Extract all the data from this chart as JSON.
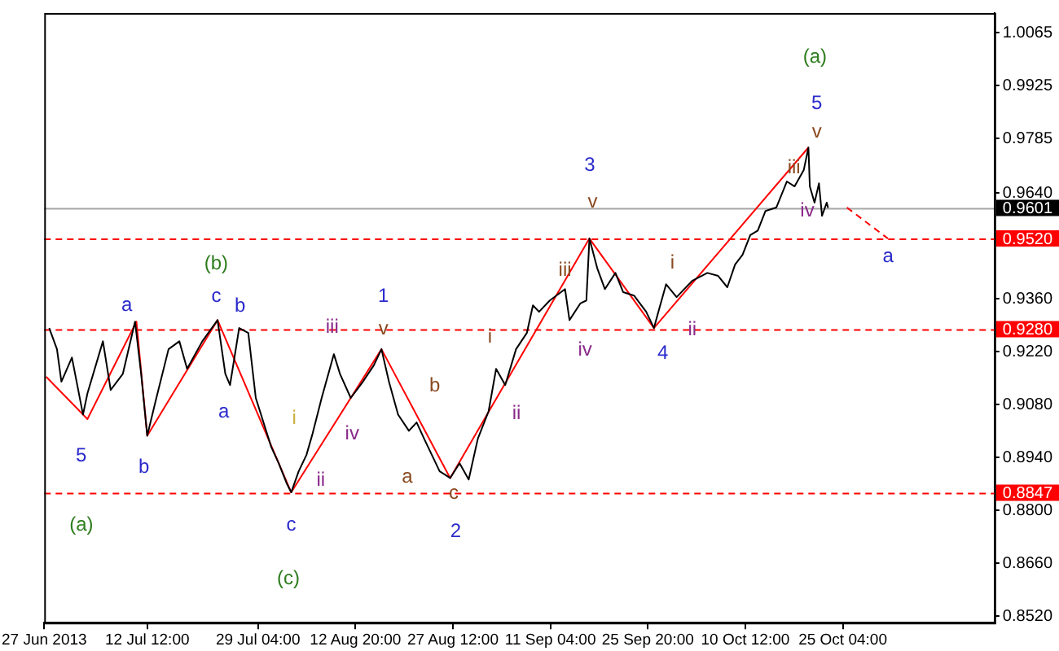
{
  "chart_data": {
    "type": "line",
    "marker": "none",
    "legend": false,
    "grid": false,
    "xlim": [
      "2013-06-27T00:00",
      "2013-11-17T00:00"
    ],
    "xticks": [
      {
        "value": "2013-06-27T00:00",
        "label": "27 Jun 2013"
      },
      {
        "value": "2013-07-12T12:00",
        "label": "12 Jul 12:00"
      },
      {
        "value": "2013-07-29T04:00",
        "label": "29 Jul 04:00"
      },
      {
        "value": "2013-08-12T20:00",
        "label": "12 Aug 20:00"
      },
      {
        "value": "2013-08-27T12:00",
        "label": "27 Aug 12:00"
      },
      {
        "value": "2013-09-11T04:00",
        "label": "11 Sep 04:00"
      },
      {
        "value": "2013-09-25T20:00",
        "label": "25 Sep 20:00"
      },
      {
        "value": "2013-10-10T12:00",
        "label": "10 Oct 12:00"
      },
      {
        "value": "2013-10-25T04:00",
        "label": "25 Oct 04:00"
      }
    ],
    "ylim": [
      0.8503,
      1.0117
    ],
    "yticks": [
      {
        "value": 1.0065,
        "label": "1.0065"
      },
      {
        "value": 0.9925,
        "label": "0.9925"
      },
      {
        "value": 0.9785,
        "label": "0.9785"
      },
      {
        "value": 0.964,
        "label": "0.9640"
      },
      {
        "value": 0.936,
        "label": "0.9360"
      },
      {
        "value": 0.922,
        "label": "0.9220"
      },
      {
        "value": 0.908,
        "label": "0.9080"
      },
      {
        "value": 0.894,
        "label": "0.8940"
      },
      {
        "value": 0.88,
        "label": "0.8800"
      },
      {
        "value": 0.866,
        "label": "0.8660"
      },
      {
        "value": 0.852,
        "label": "0.8520"
      }
    ],
    "series": [
      {
        "color": "#000000",
        "x": [
          "2013-06-27T18:00",
          "2013-06-28T22:00",
          "2013-06-29T14:00",
          "2013-07-01T04:00",
          "2013-07-02T20:00",
          "2013-07-03T12:00",
          "2013-07-05T20:00",
          "2013-07-07T00:00",
          "2013-07-08T20:00",
          "2013-07-10T16:00",
          "2013-07-11T14:00",
          "2013-07-12T12:00",
          "2013-07-13T21:00",
          "2013-07-15T17:00",
          "2013-07-17T08:00",
          "2013-07-18T12:00",
          "2013-07-20T19:00",
          "2013-07-23T02:00",
          "2013-07-24T06:00",
          "2013-07-24T23:00",
          "2013-07-26T08:00",
          "2013-07-27T17:00",
          "2013-07-28T20:00",
          "2013-07-30T00:00",
          "2013-07-31T04:00",
          "2013-08-01T07:00",
          "2013-08-02T11:00",
          "2013-08-03T04:00",
          "2013-08-04T07:00",
          "2013-08-05T11:00",
          "2013-08-06T09:00",
          "2013-08-07T18:00",
          "2013-08-09T14:00",
          "2013-08-10T12:00",
          "2013-08-12T03:00",
          "2013-08-13T23:00",
          "2013-08-15T14:00",
          "2013-08-16T18:00",
          "2013-08-17T21:00",
          "2013-08-19T06:00",
          "2013-08-20T21:00",
          "2013-08-22T01:00",
          "2013-08-23T04:00",
          "2013-08-24T08:00",
          "2013-08-25T12:00",
          "2013-08-27T02:00",
          "2013-08-28T12:00",
          "2013-08-29T21:00",
          "2013-08-31T06:00",
          "2013-09-01T21:00",
          "2013-09-03T00:00",
          "2013-09-04T09:00",
          "2013-09-06T00:00",
          "2013-09-07T15:00",
          "2013-09-08T13:00",
          "2013-09-09T11:00",
          "2013-09-11T02:00",
          "2013-09-13T09:00",
          "2013-09-14T01:00",
          "2013-09-15T16:00",
          "2013-09-16T14:00",
          "2013-09-17T01:00",
          "2013-09-18T05:00",
          "2013-09-19T09:00",
          "2013-09-20T23:00",
          "2013-09-22T03:00",
          "2013-09-23T18:00",
          "2013-09-25T14:00",
          "2013-09-26T18:00",
          "2013-09-27T10:00",
          "2013-09-28T14:00",
          "2013-09-30T04:00",
          "2013-10-02T12:00",
          "2013-10-04T19:00",
          "2013-10-06T10:00",
          "2013-10-07T19:00",
          "2013-10-08T23:00",
          "2013-10-10T02:00",
          "2013-10-11T06:00",
          "2013-10-12T09:00",
          "2013-10-13T13:00",
          "2013-10-15T04:00",
          "2013-10-16T18:00",
          "2013-10-17T22:00",
          "2013-10-19T07:00",
          "2013-10-20T00:00",
          "2013-10-20T05:00",
          "2013-10-20T22:00",
          "2013-10-21T14:00",
          "2013-10-22T01:00",
          "2013-10-22T18:00",
          "2013-10-22T23:00"
        ],
        "values": [
          0.9283,
          0.9227,
          0.9141,
          0.9205,
          0.9054,
          0.911,
          0.9248,
          0.9119,
          0.9162,
          0.93,
          0.9162,
          0.8998,
          0.9098,
          0.9227,
          0.9248,
          0.9175,
          0.9248,
          0.9304,
          0.9162,
          0.9132,
          0.9283,
          0.927,
          0.9098,
          0.9033,
          0.8968,
          0.8925,
          0.8873,
          0.8848,
          0.8904,
          0.8947,
          0.9003,
          0.9098,
          0.9214,
          0.9162,
          0.9098,
          0.9141,
          0.9184,
          0.9227,
          0.9141,
          0.9054,
          0.9011,
          0.9033,
          0.899,
          0.8947,
          0.8904,
          0.8886,
          0.8925,
          0.8882,
          0.899,
          0.9063,
          0.9175,
          0.9132,
          0.9227,
          0.927,
          0.9343,
          0.9326,
          0.9356,
          0.9386,
          0.9304,
          0.9348,
          0.9356,
          0.952,
          0.9442,
          0.9386,
          0.9429,
          0.9378,
          0.9369,
          0.9326,
          0.9283,
          0.9326,
          0.9399,
          0.9365,
          0.9408,
          0.9429,
          0.9421,
          0.9391,
          0.9451,
          0.9477,
          0.9529,
          0.9541,
          0.9593,
          0.9602,
          0.9671,
          0.9658,
          0.9701,
          0.9761,
          0.9658,
          0.9615,
          0.9666,
          0.958,
          0.9615,
          0.9601
        ]
      },
      {
        "color": "#ff0000",
        "x": [
          "2013-06-27T07:00",
          "2013-07-03T12:00",
          "2013-07-10T21:00",
          "2013-07-12T12:00",
          "2013-07-23T02:00",
          "2013-08-03T04:00",
          "2013-08-16T18:00",
          "2013-08-27T02:00",
          "2013-09-17T01:00",
          "2013-09-26T18:00",
          "2013-10-20T00:00"
        ],
        "values": [
          0.9154,
          0.9042,
          0.93,
          0.8998,
          0.9304,
          0.8848,
          0.9227,
          0.8886,
          0.952,
          0.9283,
          0.9761
        ]
      },
      {
        "color": "#ff0000",
        "line_style": "dashed",
        "x": [
          "2013-10-25T19:00",
          "2013-10-31T23:00"
        ],
        "values": [
          0.9602,
          0.952
        ]
      }
    ],
    "ref_lines": [
      {
        "axis": "y",
        "value": 0.952,
        "label": "0.9520",
        "color": "#ff0000",
        "line_style": "dashed"
      },
      {
        "axis": "y",
        "value": 0.928,
        "label": "0.9280",
        "color": "#ff0000",
        "line_style": "dashed"
      },
      {
        "axis": "y",
        "value": 0.8847,
        "label": "0.8847",
        "color": "#ff0000",
        "line_style": "dashed"
      },
      {
        "axis": "y",
        "value": 0.9601,
        "label": "0.9601",
        "color": "#000000",
        "line_style": "solid"
      }
    ],
    "annotations": [
      "(a)",
      "5",
      "a",
      "b",
      "(b)",
      "c",
      "b",
      "a",
      "c",
      "(c)",
      "i",
      "ii",
      "iii",
      "iv",
      "v",
      "1",
      "b",
      "a",
      "c",
      "2",
      "i",
      "ii",
      "iii",
      "iv",
      "3",
      "v",
      "i",
      "ii",
      "4",
      "(a)",
      "5",
      "v",
      "iii",
      "iv",
      "a"
    ]
  }
}
